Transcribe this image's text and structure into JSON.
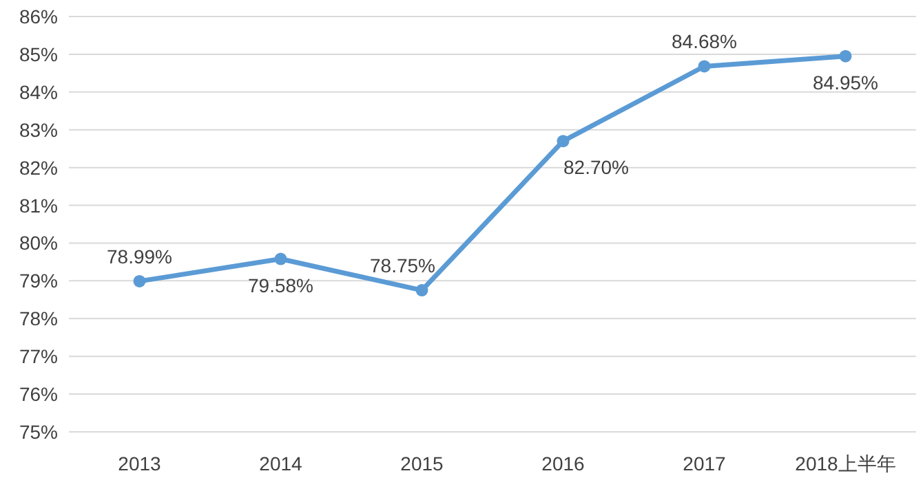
{
  "chart_data": {
    "type": "line",
    "categories": [
      "2013",
      "2014",
      "2015",
      "2016",
      "2017",
      "2018上半年"
    ],
    "series": [
      {
        "color": "#5b9bd5",
        "values": [
          78.99,
          79.58,
          78.75,
          82.7,
          84.68,
          84.95
        ],
        "value_labels": [
          "78.99%",
          "79.58%",
          "78.75%",
          "82.70%",
          "84.68%",
          "84.95%"
        ]
      }
    ],
    "ylim": [
      75,
      86
    ],
    "yticks": [
      {
        "value": 75,
        "label": "75%"
      },
      {
        "value": 76,
        "label": "76%"
      },
      {
        "value": 77,
        "label": "77%"
      },
      {
        "value": 78,
        "label": "78%"
      },
      {
        "value": 79,
        "label": "79%"
      },
      {
        "value": 80,
        "label": "80%"
      },
      {
        "value": 81,
        "label": "81%"
      },
      {
        "value": 82,
        "label": "82%"
      },
      {
        "value": 83,
        "label": "83%"
      },
      {
        "value": 84,
        "label": "84%"
      },
      {
        "value": 85,
        "label": "85%"
      },
      {
        "value": 86,
        "label": "86%"
      }
    ],
    "grid": "y",
    "marker": "circle",
    "line_style": "solid"
  }
}
